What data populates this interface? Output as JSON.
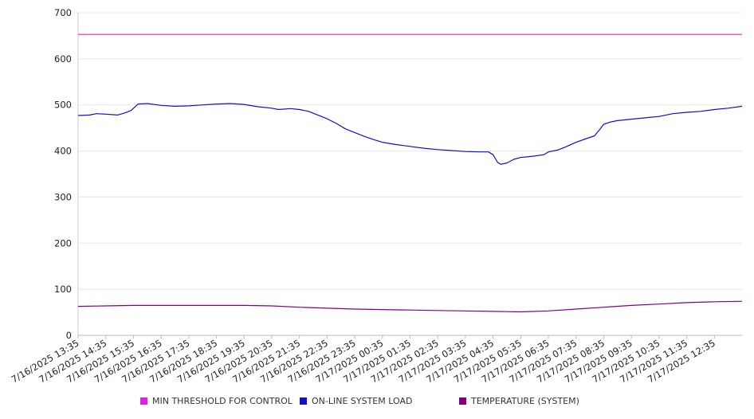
{
  "chart_data": {
    "type": "line",
    "title": "",
    "xlabel": "",
    "ylabel": "",
    "ylim": [
      0,
      700
    ],
    "yticks": [
      0,
      100,
      200,
      300,
      400,
      500,
      600,
      700
    ],
    "grid": true,
    "legend_position": "bottom",
    "x_tick_labels": [
      "7/16/2025 13:35",
      "7/16/2025 14:35",
      "7/16/2025 15:35",
      "7/16/2025 16:35",
      "7/16/2025 17:35",
      "7/16/2025 18:35",
      "7/16/2025 19:35",
      "7/16/2025 20:35",
      "7/16/2025 21:35",
      "7/16/2025 22:35",
      "7/16/2025 23:35",
      "7/17/2025 00:35",
      "7/17/2025 01:35",
      "7/17/2025 02:35",
      "7/17/2025 03:35",
      "7/17/2025 04:35",
      "7/17/2025 05:35",
      "7/17/2025 06:35",
      "7/17/2025 07:35",
      "7/17/2025 08:35",
      "7/17/2025 09:35",
      "7/17/2025 10:35",
      "7/17/2025 11:35",
      "7/17/2025 12:35"
    ],
    "x_range": [
      "7/16/2025 13:35",
      "7/17/2025 13:35"
    ],
    "series": [
      {
        "name": "MIN THRESHOLD FOR CONTROL",
        "color": "#e020e0",
        "points": [
          [
            "7/16/2025 13:35",
            653
          ],
          [
            "7/17/2025 13:35",
            653
          ]
        ]
      },
      {
        "name": "ON-LINE SYSTEM LOAD",
        "color": "#1010d0",
        "points": [
          [
            "7/16/2025 13:35",
            477
          ],
          [
            "7/16/2025 14:00",
            478
          ],
          [
            "7/16/2025 14:15",
            481
          ],
          [
            "7/16/2025 14:35",
            480
          ],
          [
            "7/16/2025 15:00",
            478
          ],
          [
            "7/16/2025 15:15",
            482
          ],
          [
            "7/16/2025 15:30",
            488
          ],
          [
            "7/16/2025 15:45",
            502
          ],
          [
            "7/16/2025 16:05",
            503
          ],
          [
            "7/16/2025 16:35",
            499
          ],
          [
            "7/16/2025 17:05",
            497
          ],
          [
            "7/16/2025 17:35",
            498
          ],
          [
            "7/16/2025 18:05",
            500
          ],
          [
            "7/16/2025 18:35",
            502
          ],
          [
            "7/16/2025 19:05",
            503
          ],
          [
            "7/16/2025 19:35",
            501
          ],
          [
            "7/16/2025 20:05",
            496
          ],
          [
            "7/16/2025 20:35",
            493
          ],
          [
            "7/16/2025 20:50",
            490
          ],
          [
            "7/16/2025 21:15",
            492
          ],
          [
            "7/16/2025 21:35",
            490
          ],
          [
            "7/16/2025 21:55",
            486
          ],
          [
            "7/16/2025 22:15",
            478
          ],
          [
            "7/16/2025 22:35",
            470
          ],
          [
            "7/16/2025 22:55",
            460
          ],
          [
            "7/16/2025 23:15",
            448
          ],
          [
            "7/16/2025 23:35",
            440
          ],
          [
            "7/16/2025 23:55",
            432
          ],
          [
            "7/17/2025 00:15",
            425
          ],
          [
            "7/17/2025 00:35",
            419
          ],
          [
            "7/17/2025 01:05",
            414
          ],
          [
            "7/17/2025 01:35",
            410
          ],
          [
            "7/17/2025 02:05",
            406
          ],
          [
            "7/17/2025 02:35",
            403
          ],
          [
            "7/17/2025 03:05",
            401
          ],
          [
            "7/17/2025 03:35",
            399
          ],
          [
            "7/17/2025 04:05",
            398
          ],
          [
            "7/17/2025 04:25",
            398
          ],
          [
            "7/17/2025 04:35",
            392
          ],
          [
            "7/17/2025 04:45",
            375
          ],
          [
            "7/17/2025 04:52",
            371
          ],
          [
            "7/17/2025 05:05",
            374
          ],
          [
            "7/17/2025 05:20",
            382
          ],
          [
            "7/17/2025 05:35",
            386
          ],
          [
            "7/17/2025 06:05",
            389
          ],
          [
            "7/17/2025 06:25",
            392
          ],
          [
            "7/17/2025 06:35",
            398
          ],
          [
            "7/17/2025 06:55",
            402
          ],
          [
            "7/17/2025 07:15",
            410
          ],
          [
            "7/17/2025 07:35",
            419
          ],
          [
            "7/17/2025 07:55",
            426
          ],
          [
            "7/17/2025 08:15",
            433
          ],
          [
            "7/17/2025 08:25",
            445
          ],
          [
            "7/17/2025 08:35",
            458
          ],
          [
            "7/17/2025 08:50",
            463
          ],
          [
            "7/17/2025 09:05",
            466
          ],
          [
            "7/17/2025 09:35",
            469
          ],
          [
            "7/17/2025 10:05",
            472
          ],
          [
            "7/17/2025 10:35",
            475
          ],
          [
            "7/17/2025 11:05",
            481
          ],
          [
            "7/17/2025 11:35",
            484
          ],
          [
            "7/17/2025 12:05",
            486
          ],
          [
            "7/17/2025 12:35",
            490
          ],
          [
            "7/17/2025 13:05",
            493
          ],
          [
            "7/17/2025 13:35",
            497
          ]
        ]
      },
      {
        "name": "TEMPERATURE (SYSTEM)",
        "color": "#800080",
        "points": [
          [
            "7/16/2025 13:35",
            63
          ],
          [
            "7/16/2025 14:35",
            64
          ],
          [
            "7/16/2025 15:35",
            65
          ],
          [
            "7/16/2025 16:35",
            65
          ],
          [
            "7/16/2025 17:35",
            65
          ],
          [
            "7/16/2025 18:35",
            65
          ],
          [
            "7/16/2025 19:35",
            65
          ],
          [
            "7/16/2025 20:35",
            64
          ],
          [
            "7/16/2025 21:35",
            61
          ],
          [
            "7/16/2025 22:35",
            59
          ],
          [
            "7/16/2025 23:35",
            57
          ],
          [
            "7/17/2025 00:35",
            56
          ],
          [
            "7/17/2025 01:35",
            55
          ],
          [
            "7/17/2025 02:35",
            54
          ],
          [
            "7/17/2025 03:35",
            53
          ],
          [
            "7/17/2025 04:35",
            52
          ],
          [
            "7/17/2025 05:35",
            51
          ],
          [
            "7/17/2025 06:35",
            53
          ],
          [
            "7/17/2025 07:35",
            57
          ],
          [
            "7/17/2025 08:35",
            61
          ],
          [
            "7/17/2025 09:35",
            65
          ],
          [
            "7/17/2025 10:35",
            68
          ],
          [
            "7/17/2025 11:35",
            71
          ],
          [
            "7/17/2025 12:35",
            73
          ],
          [
            "7/17/2025 13:35",
            74
          ]
        ]
      }
    ]
  }
}
